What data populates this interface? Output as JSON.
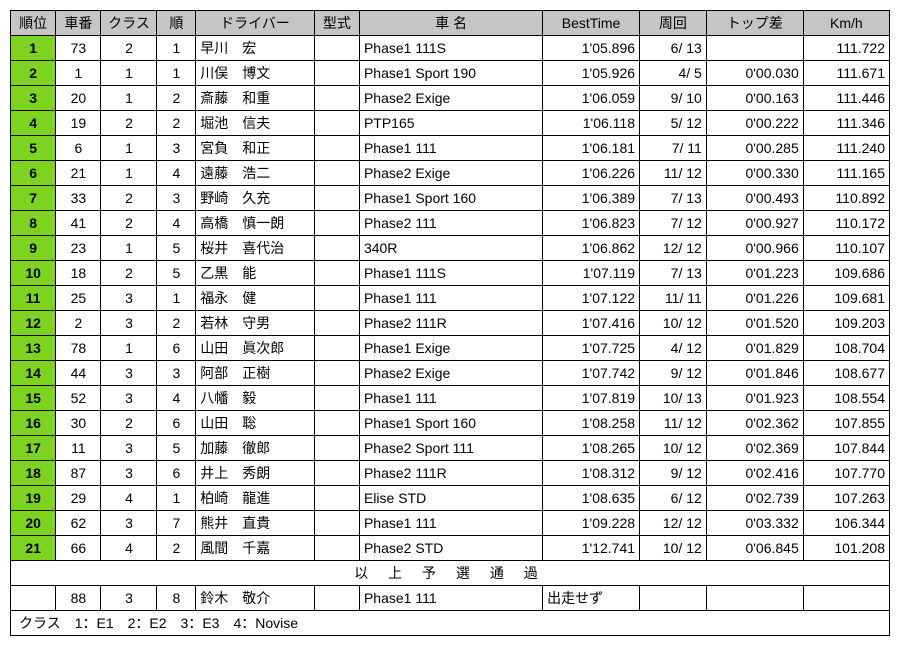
{
  "headers": {
    "rank": "順位",
    "carno": "車番",
    "class": "クラス",
    "order": "順",
    "driver": "ドライバー",
    "type": "型式",
    "carname": "車 名",
    "best": "BestTime",
    "lap": "周回",
    "gap": "トップ差",
    "kmh": "Km/h"
  },
  "rows": [
    {
      "rank": "1",
      "carno": "73",
      "class": "2",
      "order": "1",
      "driver": "早川　宏",
      "type": "",
      "carname": "Phase1 111S",
      "best": "1'05.896",
      "lap": "6/ 13",
      "gap": "",
      "kmh": "111.722"
    },
    {
      "rank": "2",
      "carno": "1",
      "class": "1",
      "order": "1",
      "driver": "川俣　博文",
      "type": "",
      "carname": "Phase1 Sport 190",
      "best": "1'05.926",
      "lap": "4/  5",
      "gap": "0'00.030",
      "kmh": "111.671"
    },
    {
      "rank": "3",
      "carno": "20",
      "class": "1",
      "order": "2",
      "driver": "斎藤　和重",
      "type": "",
      "carname": "Phase2 Exige",
      "best": "1'06.059",
      "lap": "9/ 10",
      "gap": "0'00.163",
      "kmh": "111.446"
    },
    {
      "rank": "4",
      "carno": "19",
      "class": "2",
      "order": "2",
      "driver": "堀池　信夫",
      "type": "",
      "carname": "PTP165",
      "best": "1'06.118",
      "lap": "5/ 12",
      "gap": "0'00.222",
      "kmh": "111.346"
    },
    {
      "rank": "5",
      "carno": "6",
      "class": "1",
      "order": "3",
      "driver": "宮負　和正",
      "type": "",
      "carname": "Phase1 111",
      "best": "1'06.181",
      "lap": "7/ 11",
      "gap": "0'00.285",
      "kmh": "111.240"
    },
    {
      "rank": "6",
      "carno": "21",
      "class": "1",
      "order": "4",
      "driver": "遠藤　浩二",
      "type": "",
      "carname": "Phase2 Exige",
      "best": "1'06.226",
      "lap": "11/ 12",
      "gap": "0'00.330",
      "kmh": "111.165"
    },
    {
      "rank": "7",
      "carno": "33",
      "class": "2",
      "order": "3",
      "driver": "野崎　久充",
      "type": "",
      "carname": "Phase1 Sport 160",
      "best": "1'06.389",
      "lap": "7/ 13",
      "gap": "0'00.493",
      "kmh": "110.892"
    },
    {
      "rank": "8",
      "carno": "41",
      "class": "2",
      "order": "4",
      "driver": "高橋　慎一朗",
      "type": "",
      "carname": "Phase2 111",
      "best": "1'06.823",
      "lap": "7/ 12",
      "gap": "0'00.927",
      "kmh": "110.172"
    },
    {
      "rank": "9",
      "carno": "23",
      "class": "1",
      "order": "5",
      "driver": "桜井　喜代治",
      "type": "",
      "carname": "340R",
      "best": "1'06.862",
      "lap": "12/ 12",
      "gap": "0'00.966",
      "kmh": "110.107"
    },
    {
      "rank": "10",
      "carno": "18",
      "class": "2",
      "order": "5",
      "driver": "乙黒　能",
      "type": "",
      "carname": "Phase1 111S",
      "best": "1'07.119",
      "lap": "7/ 13",
      "gap": "0'01.223",
      "kmh": "109.686"
    },
    {
      "rank": "11",
      "carno": "25",
      "class": "3",
      "order": "1",
      "driver": "福永　健",
      "type": "",
      "carname": "Phase1 111",
      "best": "1'07.122",
      "lap": "11/ 11",
      "gap": "0'01.226",
      "kmh": "109.681"
    },
    {
      "rank": "12",
      "carno": "2",
      "class": "3",
      "order": "2",
      "driver": "若林　守男",
      "type": "",
      "carname": "Phase2 111R",
      "best": "1'07.416",
      "lap": "10/ 12",
      "gap": "0'01.520",
      "kmh": "109.203"
    },
    {
      "rank": "13",
      "carno": "78",
      "class": "1",
      "order": "6",
      "driver": "山田　眞次郎",
      "type": "",
      "carname": "Phase1 Exige",
      "best": "1'07.725",
      "lap": "4/ 12",
      "gap": "0'01.829",
      "kmh": "108.704"
    },
    {
      "rank": "14",
      "carno": "44",
      "class": "3",
      "order": "3",
      "driver": "阿部　正樹",
      "type": "",
      "carname": "Phase2 Exige",
      "best": "1'07.742",
      "lap": "9/ 12",
      "gap": "0'01.846",
      "kmh": "108.677"
    },
    {
      "rank": "15",
      "carno": "52",
      "class": "3",
      "order": "4",
      "driver": "八幡　毅",
      "type": "",
      "carname": "Phase1 111",
      "best": "1'07.819",
      "lap": "10/ 13",
      "gap": "0'01.923",
      "kmh": "108.554"
    },
    {
      "rank": "16",
      "carno": "30",
      "class": "2",
      "order": "6",
      "driver": "山田　聡",
      "type": "",
      "carname": "Phase1 Sport 160",
      "best": "1'08.258",
      "lap": "11/ 12",
      "gap": "0'02.362",
      "kmh": "107.855"
    },
    {
      "rank": "17",
      "carno": "11",
      "class": "3",
      "order": "5",
      "driver": "加藤　徹郎",
      "type": "",
      "carname": "Phase2 Sport 111",
      "best": "1'08.265",
      "lap": "10/ 12",
      "gap": "0'02.369",
      "kmh": "107.844"
    },
    {
      "rank": "18",
      "carno": "87",
      "class": "3",
      "order": "6",
      "driver": "井上　秀朗",
      "type": "",
      "carname": "Phase2 111R",
      "best": "1'08.312",
      "lap": "9/ 12",
      "gap": "0'02.416",
      "kmh": "107.770"
    },
    {
      "rank": "19",
      "carno": "29",
      "class": "4",
      "order": "1",
      "driver": "柏崎　龍進",
      "type": "",
      "carname": "Elise STD",
      "best": "1'08.635",
      "lap": "6/ 12",
      "gap": "0'02.739",
      "kmh": "107.263"
    },
    {
      "rank": "20",
      "carno": "62",
      "class": "3",
      "order": "7",
      "driver": "熊井　直貴",
      "type": "",
      "carname": "Phase1 111",
      "best": "1'09.228",
      "lap": "12/ 12",
      "gap": "0'03.332",
      "kmh": "106.344"
    },
    {
      "rank": "21",
      "carno": "66",
      "class": "4",
      "order": "2",
      "driver": "風間　千嘉",
      "type": "",
      "carname": "Phase2 STD",
      "best": "1'12.741",
      "lap": "10/ 12",
      "gap": "0'06.845",
      "kmh": "101.208"
    }
  ],
  "separator_text": "以 上 予 選 通 過",
  "extra_row": {
    "rank": "",
    "carno": "88",
    "class": "3",
    "order": "8",
    "driver": "鈴木　敬介",
    "type": "",
    "carname": "Phase1 111",
    "best": "出走せず",
    "lap": "",
    "gap": "",
    "kmh": ""
  },
  "footer_text": "クラス　1：E1　2：E2　3：E3　4：Novise",
  "style": {
    "rank_bg": "#7ed321",
    "header_bg": "#c5c5c5",
    "border_color": "#000000",
    "background": "#ffffff",
    "font_size": 14
  }
}
